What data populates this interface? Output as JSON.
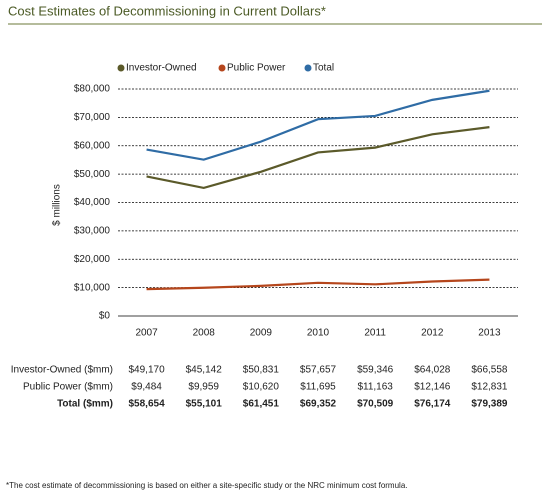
{
  "chart_data": {
    "type": "line",
    "title": "Cost Estimates of Decommissioning in Current Dollars*",
    "y_label": "$ millions",
    "categories": [
      "2007",
      "2008",
      "2009",
      "2010",
      "2011",
      "2012",
      "2013"
    ],
    "series": [
      {
        "name": "Investor-Owned",
        "table_label": "Investor-Owned ($mm)",
        "color": "#5b5a2a",
        "values": [
          49170,
          45142,
          50831,
          57657,
          59346,
          64028,
          66558
        ],
        "value_labels": [
          "$49,170",
          "$45,142",
          "$50,831",
          "$57,657",
          "$59,346",
          "$64,028",
          "$66,558"
        ]
      },
      {
        "name": "Public Power",
        "table_label": "Public Power ($mm)",
        "color": "#b5461c",
        "values": [
          9484,
          9959,
          10620,
          11695,
          11163,
          12146,
          12831
        ],
        "value_labels": [
          "$9,484",
          "$9,959",
          "$10,620",
          "$11,695",
          "$11,163",
          "$12,146",
          "$12,831"
        ]
      },
      {
        "name": "Total",
        "table_label": "Total ($mm)",
        "color": "#2f6ca5",
        "values": [
          58654,
          55101,
          61451,
          69352,
          70509,
          76174,
          79389
        ],
        "value_labels": [
          "$58,654",
          "$55,101",
          "$61,451",
          "$69,352",
          "$70,509",
          "$76,174",
          "$79,389"
        ]
      }
    ],
    "ylim": [
      0,
      80000
    ],
    "yticks": [
      {
        "value": 0,
        "label": "$0"
      },
      {
        "value": 10000,
        "label": "$10,000"
      },
      {
        "value": 20000,
        "label": "$20,000"
      },
      {
        "value": 30000,
        "label": "$30,000"
      },
      {
        "value": 40000,
        "label": "$40,000"
      },
      {
        "value": 50000,
        "label": "$50,000"
      },
      {
        "value": 60000,
        "label": "$60,000"
      },
      {
        "value": 70000,
        "label": "$70,000"
      },
      {
        "value": 80000,
        "label": "$80,000"
      }
    ],
    "grid": true,
    "footnote": "*The cost estimate of decommissioning is based on either a site-specific study or the NRC minimum cost formula."
  }
}
